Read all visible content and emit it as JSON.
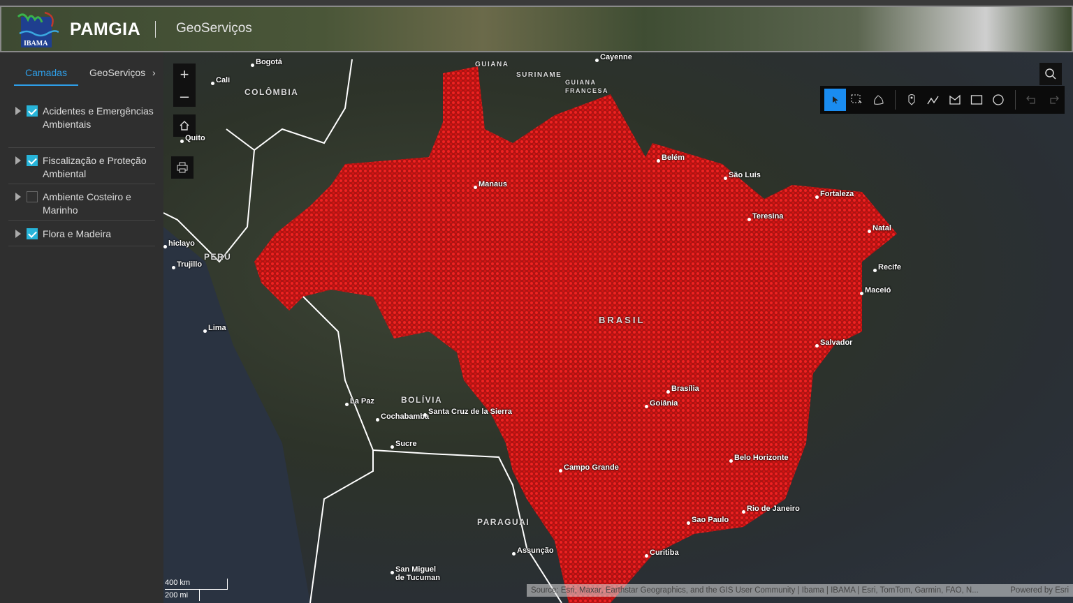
{
  "header": {
    "org_logo": "IBAMA",
    "brand": "PAMGIA",
    "app_title": "GeoServiços"
  },
  "sidebar": {
    "tabs": [
      {
        "label": "Camadas",
        "active": true
      },
      {
        "label": "GeoServiços",
        "active": false
      }
    ],
    "layers": [
      {
        "label": "Acidentes e Emergências Ambientais",
        "checked": true
      },
      {
        "label": "Fiscalização e Proteção Ambiental",
        "checked": true
      },
      {
        "label": "Ambiente Costeiro e Marinho",
        "checked": false
      },
      {
        "label": "Flora e Madeira",
        "checked": true
      }
    ]
  },
  "map": {
    "countries": [
      "COLÔMBIA",
      "GUIANA",
      "SURINAME",
      "GUIANA FRANCESA",
      "PERU",
      "BOLÍVIA",
      "PARAGUAI",
      "BRASIL"
    ],
    "cities": [
      "Bogotá",
      "Cali",
      "Quito",
      "Cayenne",
      "Belém",
      "São Luís",
      "Fortaleza",
      "Teresina",
      "Natal",
      "Recife",
      "Maceió",
      "Manaus",
      "Salvador",
      "Brasília",
      "Goiânia",
      "Campo Grande",
      "Belo Horizonte",
      "Rio de Janeiro",
      "Sao Paulo",
      "Curitiba",
      "Lima",
      "Trujillo",
      "hiclayo",
      "La Paz",
      "Cochabamba",
      "Santa Cruz de la Sierra",
      "Sucre",
      "Assunção",
      "San Miguel de Tucuman"
    ],
    "scale": {
      "km": "400 km",
      "mi": "200 mi"
    },
    "attribution": "Source: Esri, Maxar, Earthstar Geographics, and the GIS User Community | Ibama | IBAMA | Esri, TomTom, Garmin, FAO, N...",
    "powered_by": "Powered by Esri",
    "point_color": "#e01010"
  },
  "toolbar": {
    "tools": [
      "select",
      "rectangle-select",
      "lasso-select",
      "point",
      "polyline",
      "polygon",
      "rectangle",
      "circle",
      "undo",
      "redo"
    ],
    "active": "select"
  }
}
